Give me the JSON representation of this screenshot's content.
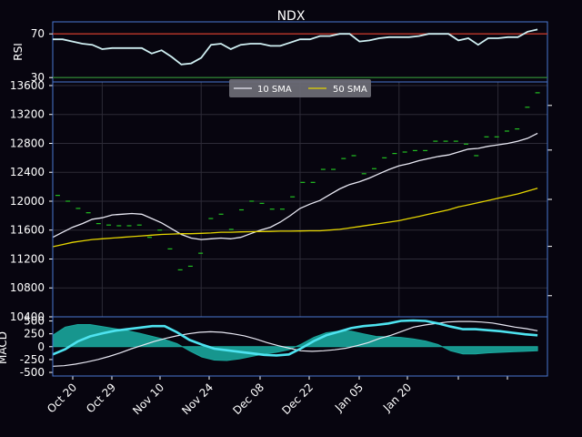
{
  "chart_data": [
    {
      "type": "line",
      "panel": "rsi",
      "title": "NDX",
      "ylabel": "RSI",
      "ylim": [
        26,
        81
      ],
      "yticks": [
        30,
        70
      ],
      "hlines": [
        {
          "value": 70,
          "color": "#c0392b"
        },
        {
          "value": 30,
          "color": "#2e7d32"
        }
      ],
      "series": [
        {
          "color": "#cfeff2",
          "values": [
            65,
            65,
            63,
            61,
            60,
            56,
            57,
            57,
            57,
            57,
            52,
            55,
            49,
            42,
            43,
            48,
            60,
            61,
            56,
            60,
            61,
            61,
            59,
            59,
            62,
            65,
            65,
            68,
            68,
            70,
            70,
            63,
            64,
            66,
            67,
            67,
            67,
            68,
            70,
            70,
            70,
            64,
            66,
            60,
            66,
            66,
            67,
            67,
            72,
            74
          ]
        }
      ],
      "grid": false
    },
    {
      "type": "line",
      "panel": "price",
      "ylim": [
        10400,
        13650
      ],
      "yticks": [
        10400,
        10800,
        11200,
        11600,
        12000,
        12400,
        12800,
        13200,
        13600
      ],
      "grid": true,
      "legend": {
        "placement": "top-center"
      },
      "series": [
        {
          "name": "10 SMA",
          "color": "#e9e9f4",
          "values": [
            11500,
            11570,
            11640,
            11690,
            11750,
            11770,
            11810,
            11820,
            11830,
            11820,
            11760,
            11700,
            11620,
            11540,
            11490,
            11470,
            11480,
            11490,
            11480,
            11500,
            11550,
            11600,
            11640,
            11710,
            11800,
            11900,
            11960,
            12010,
            12090,
            12170,
            12230,
            12270,
            12320,
            12380,
            12440,
            12490,
            12520,
            12560,
            12590,
            12620,
            12640,
            12680,
            12720,
            12730,
            12760,
            12780,
            12800,
            12830,
            12870,
            12940
          ]
        },
        {
          "name": "50 SMA",
          "color": "#e5d500",
          "values": [
            11370,
            11400,
            11430,
            11450,
            11470,
            11480,
            11490,
            11500,
            11510,
            11520,
            11530,
            11540,
            11545,
            11550,
            11550,
            11555,
            11560,
            11570,
            11570,
            11575,
            11578,
            11580,
            11582,
            11585,
            11585,
            11588,
            11590,
            11590,
            11600,
            11610,
            11630,
            11650,
            11670,
            11690,
            11710,
            11730,
            11760,
            11790,
            11820,
            11850,
            11880,
            11920,
            11950,
            11980,
            12010,
            12040,
            12070,
            12100,
            12140,
            12180
          ]
        }
      ],
      "points": {
        "color": "#22c022",
        "values": [
          12080,
          12000,
          11900,
          11840,
          11690,
          11670,
          11660,
          11660,
          11670,
          11500,
          11600,
          11340,
          11050,
          11100,
          11280,
          11760,
          11820,
          11610,
          11880,
          12000,
          11970,
          11890,
          11890,
          12060,
          12260,
          12260,
          12440,
          12440,
          12590,
          12630,
          12380,
          12450,
          12600,
          12660,
          12680,
          12700,
          12700,
          12830,
          12830,
          12830,
          12790,
          12630,
          12890,
          12890,
          12970,
          13000,
          13300,
          13500
        ]
      }
    },
    {
      "type": "area",
      "panel": "macd",
      "ylabel": "MACD",
      "ylim": [
        -570,
        580
      ],
      "yticks": [
        -500,
        -250,
        0,
        250,
        500
      ],
      "x_tick_labels": [
        "Oct 20",
        "Oct 29",
        "Nov 10",
        "Nov 24",
        "Dec 08",
        "Dec 22",
        "Jan 05",
        "Jan 20"
      ],
      "series": [
        {
          "color": "#e9e9f4",
          "values": [
            -380,
            -370,
            -340,
            -300,
            -250,
            -190,
            -120,
            -40,
            30,
            100,
            160,
            210,
            250,
            280,
            290,
            280,
            250,
            210,
            150,
            80,
            20,
            -30,
            -80,
            -90,
            -80,
            -60,
            -30,
            20,
            80,
            160,
            220,
            300,
            380,
            420,
            450,
            480,
            490,
            490,
            480,
            460,
            420,
            380,
            350,
            310
          ]
        },
        {
          "color": "#4ee3f0",
          "values": [
            -150,
            -50,
            100,
            200,
            260,
            310,
            340,
            370,
            400,
            400,
            280,
            130,
            40,
            -40,
            -70,
            -100,
            -130,
            -160,
            -170,
            -150,
            -30,
            110,
            220,
            290,
            360,
            400,
            420,
            450,
            500,
            510,
            500,
            450,
            390,
            340,
            340,
            320,
            300,
            270,
            240,
            220
          ]
        },
        {
          "color": "#1aa69c",
          "values": [
            220,
            380,
            430,
            430,
            390,
            350,
            310,
            260,
            200,
            140,
            60,
            -80,
            -200,
            -260,
            -270,
            -240,
            -190,
            -140,
            -110,
            -60,
            50,
            180,
            270,
            300,
            300,
            250,
            200,
            190,
            180,
            150,
            110,
            40,
            -80,
            -140,
            -140,
            -120,
            -110,
            -100,
            -90,
            -80
          ]
        }
      ]
    }
  ]
}
